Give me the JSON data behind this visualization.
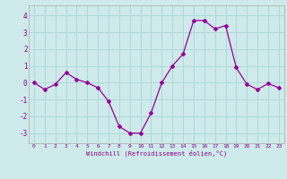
{
  "x": [
    0,
    1,
    2,
    3,
    4,
    5,
    6,
    7,
    8,
    9,
    10,
    11,
    12,
    13,
    14,
    15,
    16,
    17,
    18,
    19,
    20,
    21,
    22,
    23
  ],
  "y": [
    0.0,
    -0.4,
    -0.1,
    0.6,
    0.2,
    0.0,
    -0.3,
    -1.1,
    -2.6,
    -3.0,
    -3.0,
    -1.8,
    0.0,
    1.0,
    1.7,
    3.7,
    3.7,
    3.2,
    3.4,
    0.9,
    -0.1,
    -0.4,
    -0.05,
    -0.3
  ],
  "line_color": "#990099",
  "marker": "D",
  "marker_size": 2,
  "bg_color": "#ceeaea",
  "grid_color": "#b0d8d8",
  "xlabel": "Windchill (Refroidissement éolien,°C)",
  "xlim": [
    -0.5,
    23.5
  ],
  "ylim": [
    -3.6,
    4.6
  ],
  "yticks": [
    -3,
    -2,
    -1,
    0,
    1,
    2,
    3,
    4
  ],
  "xticks": [
    0,
    1,
    2,
    3,
    4,
    5,
    6,
    7,
    8,
    9,
    10,
    11,
    12,
    13,
    14,
    15,
    16,
    17,
    18,
    19,
    20,
    21,
    22,
    23
  ],
  "tick_color": "#880088",
  "label_color": "#880088"
}
